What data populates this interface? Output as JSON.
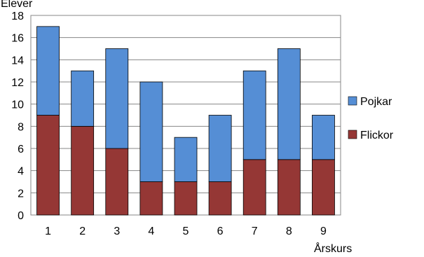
{
  "chart_data": {
    "type": "bar",
    "stacked": true,
    "ylabel": "Elever",
    "xlabel": "Årskurs",
    "categories": [
      "1",
      "2",
      "3",
      "4",
      "5",
      "6",
      "7",
      "8",
      "9"
    ],
    "series": [
      {
        "name": "Flickor",
        "values": [
          9,
          8,
          6,
          3,
          3,
          3,
          5,
          5,
          5
        ],
        "color": "#953735"
      },
      {
        "name": "Pojkar",
        "values": [
          8,
          5,
          9,
          9,
          4,
          6,
          8,
          10,
          4
        ],
        "color": "#558ED5"
      }
    ],
    "ylim": [
      0,
      18
    ],
    "yticks": [
      0,
      2,
      4,
      6,
      8,
      10,
      12,
      14,
      16,
      18
    ],
    "grid": true,
    "legend_position": "right",
    "legend_order": [
      "Pojkar",
      "Flickor"
    ]
  }
}
